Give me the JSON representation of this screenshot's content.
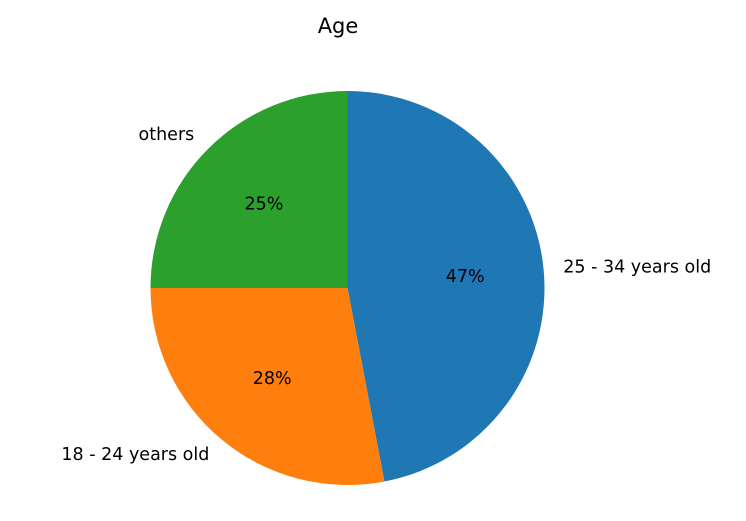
{
  "chart_data": {
    "type": "pie",
    "title": "Age",
    "categories": [
      "25 - 34 years old",
      "18 - 24 years old",
      "others"
    ],
    "values": [
      47,
      28,
      25
    ],
    "value_labels": [
      "47%",
      "28%",
      "25%"
    ],
    "colors": [
      "#1f77b4",
      "#ff7f0e",
      "#2ca02c"
    ],
    "start_angle_deg": 90,
    "direction": "clockwise",
    "legend": "none"
  }
}
